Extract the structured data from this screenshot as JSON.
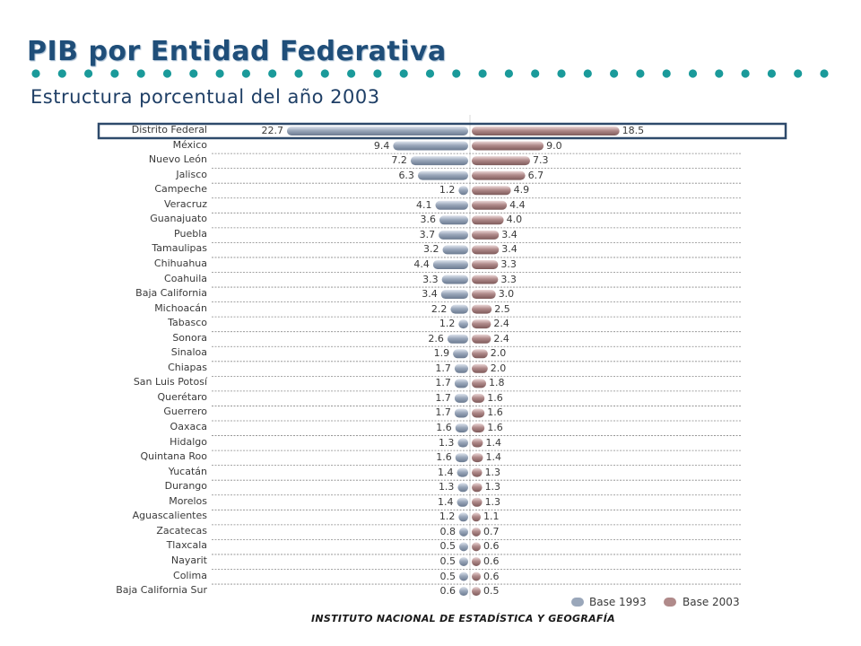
{
  "header": {
    "title": "PIB por Entidad Federativa",
    "subtitle": "Estructura porcentual del año 2003"
  },
  "footer": {
    "text": "INSTITUTO NACIONAL DE ESTADÍSTICA Y GEOGRAFÍA"
  },
  "colors": {
    "title": "#1f4e79",
    "series_1993": "#9aa7ba",
    "series_2003": "#b08a8a",
    "highlight_box": "#2e4a6b",
    "dots": "#1a9a9a"
  },
  "chart_data": {
    "type": "bar",
    "orientation": "horizontal-butterfly",
    "categories": [
      "Distrito Federal",
      "México",
      "Nuevo León",
      "Jalisco",
      "Campeche",
      "Veracruz",
      "Guanajuato",
      "Puebla",
      "Tamaulipas",
      "Chihuahua",
      "Coahuila",
      "Baja California",
      "Michoacán",
      "Tabasco",
      "Sonora",
      "Sinaloa",
      "Chiapas",
      "San Luis Potosí",
      "Querétaro",
      "Guerrero",
      "Oaxaca",
      "Hidalgo",
      "Quintana Roo",
      "Yucatán",
      "Durango",
      "Morelos",
      "Aguascalientes",
      "Zacatecas",
      "Tlaxcala",
      "Nayarit",
      "Colima",
      "Baja California Sur"
    ],
    "series": [
      {
        "name": "Base 1993",
        "side": "left",
        "values": [
          22.7,
          9.4,
          7.2,
          6.3,
          1.2,
          4.1,
          3.6,
          3.7,
          3.2,
          4.4,
          3.3,
          3.4,
          2.2,
          1.2,
          2.6,
          1.9,
          1.7,
          1.7,
          1.7,
          1.7,
          1.6,
          1.3,
          1.6,
          1.4,
          1.3,
          1.4,
          1.2,
          0.8,
          0.5,
          0.5,
          0.5,
          0.6
        ],
        "labels": [
          "22.7",
          "9.4",
          "7.2",
          "6.3",
          "1.2",
          "4.1",
          "3.6",
          "3.7",
          "3.2",
          "4.4",
          "3.3",
          "3.4",
          "2.2",
          "1.2",
          "2.6",
          "1.9",
          "1.7",
          "1.7",
          "1.7",
          "1.7",
          "1.6",
          "1.3",
          "1.6",
          "1.4",
          "1.3",
          "1.4",
          "1.2",
          "0.8",
          "0.5",
          "0.5",
          "0.5",
          "0.6"
        ]
      },
      {
        "name": "Base 2003",
        "side": "right",
        "values": [
          18.5,
          9.0,
          7.3,
          6.7,
          4.9,
          4.4,
          4.0,
          3.4,
          3.4,
          3.3,
          3.3,
          3.0,
          2.5,
          2.4,
          2.4,
          2.0,
          2.0,
          1.8,
          1.6,
          1.6,
          1.6,
          1.4,
          1.4,
          1.3,
          1.3,
          1.3,
          1.1,
          0.7,
          0.6,
          0.6,
          0.6,
          0.5
        ],
        "labels": [
          "18.5",
          "9.0",
          "7.3",
          "6.7",
          "4.9",
          "4.4",
          "4.0",
          "3.4",
          "3.4",
          "3.3",
          "3.3",
          "3.0",
          "2.5",
          "2.4",
          "2.4",
          "2.0",
          "2.0",
          "1.8",
          "1.6",
          "1.6",
          "1.6",
          "1.4",
          "1.4",
          "1.3",
          "1.3",
          "1.3",
          "1.1",
          "0.7",
          "0.6",
          "0.6",
          "0.6",
          "0.5"
        ]
      }
    ],
    "highlighted_category": "Distrito Federal",
    "legend": {
      "position": "bottom-right",
      "items": [
        "Base 1993",
        "Base 2003"
      ]
    }
  }
}
